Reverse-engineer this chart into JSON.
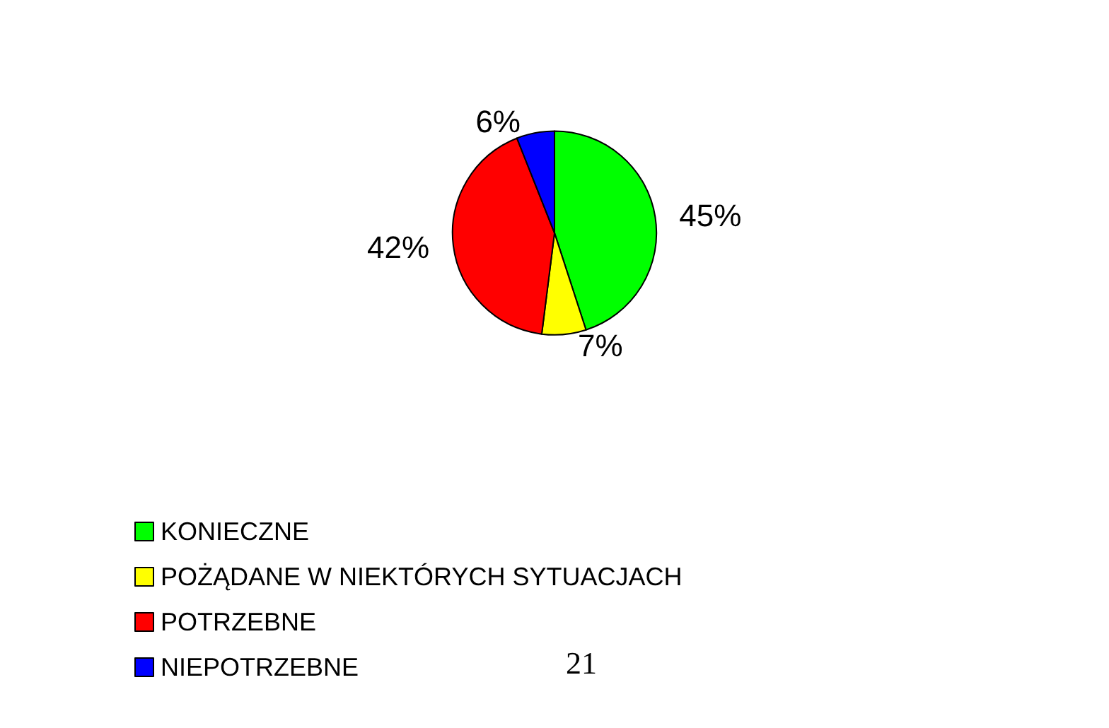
{
  "chart_data": {
    "type": "pie",
    "categories": [
      "KONIECZNE",
      "POŻĄDANE W NIEKTÓRYCH SYTUACJACH",
      "POTRZEBNE",
      "NIEPOTRZEBNE"
    ],
    "values": [
      45,
      7,
      42,
      6
    ],
    "colors": [
      "#00ff00",
      "#ffff00",
      "#ff0000",
      "#0000ff"
    ],
    "value_labels": [
      "45%",
      "7%",
      "42%",
      "6%"
    ],
    "legend": "bottom left",
    "annotations": [
      "21"
    ]
  }
}
